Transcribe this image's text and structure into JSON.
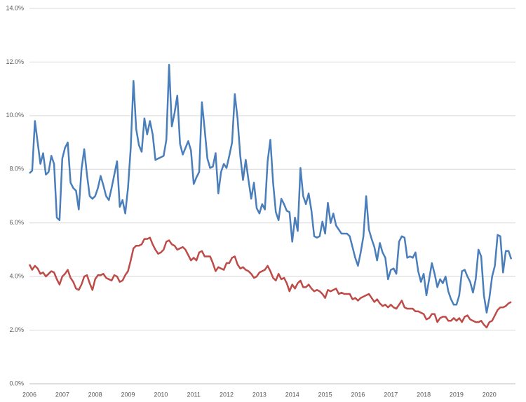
{
  "chart_data": {
    "type": "line",
    "categories": [
      "2006",
      null,
      null,
      null,
      null,
      null,
      null,
      null,
      null,
      null,
      null,
      null,
      "2007",
      null,
      null,
      null,
      null,
      null,
      null,
      null,
      null,
      null,
      null,
      null,
      "2008",
      null,
      null,
      null,
      null,
      null,
      null,
      null,
      null,
      null,
      null,
      null,
      "2009",
      null,
      null,
      null,
      null,
      null,
      null,
      null,
      null,
      null,
      null,
      null,
      "2010",
      null,
      null,
      null,
      null,
      null,
      null,
      null,
      null,
      null,
      null,
      null,
      "2011",
      null,
      null,
      null,
      null,
      null,
      null,
      null,
      null,
      null,
      null,
      null,
      "2012",
      null,
      null,
      null,
      null,
      null,
      null,
      null,
      null,
      null,
      null,
      null,
      "2013",
      null,
      null,
      null,
      null,
      null,
      null,
      null,
      null,
      null,
      null,
      null,
      "2014",
      null,
      null,
      null,
      null,
      null,
      null,
      null,
      null,
      null,
      null,
      null,
      "2015",
      null,
      null,
      null,
      null,
      null,
      null,
      null,
      null,
      null,
      null,
      null,
      "2016",
      null,
      null,
      null,
      null,
      null,
      null,
      null,
      null,
      null,
      null,
      null,
      "2017",
      null,
      null,
      null,
      null,
      null,
      null,
      null,
      null,
      null,
      null,
      null,
      "2018",
      null,
      null,
      null,
      null,
      null,
      null,
      null,
      null,
      null,
      null,
      null,
      "2019",
      null,
      null,
      null,
      null,
      null,
      null,
      null,
      null,
      null,
      null,
      null,
      "2020",
      null,
      null,
      null,
      null,
      null,
      null,
      null,
      null
    ],
    "series": [
      {
        "color": "#4a7ebb",
        "values": [
          7.85,
          7.95,
          9.8,
          9.0,
          8.2,
          8.6,
          7.8,
          7.9,
          8.5,
          8.2,
          6.2,
          6.1,
          8.4,
          8.8,
          9.0,
          7.5,
          7.3,
          7.2,
          6.5,
          8.0,
          8.75,
          7.8,
          7.0,
          6.9,
          7.0,
          7.3,
          7.75,
          7.4,
          7.0,
          6.85,
          7.3,
          7.8,
          8.3,
          6.6,
          6.85,
          6.35,
          7.3,
          8.8,
          11.3,
          9.5,
          8.9,
          8.65,
          9.9,
          9.3,
          9.8,
          9.3,
          8.35,
          8.4,
          8.45,
          8.5,
          9.1,
          11.9,
          9.6,
          10.1,
          10.75,
          8.95,
          8.55,
          8.8,
          9.05,
          8.7,
          7.45,
          7.7,
          7.9,
          10.5,
          9.5,
          8.4,
          8.05,
          8.1,
          8.6,
          7.1,
          7.9,
          8.2,
          8.05,
          8.5,
          9.0,
          10.8,
          9.9,
          8.5,
          7.6,
          8.35,
          7.6,
          6.9,
          7.5,
          6.55,
          6.35,
          6.7,
          6.5,
          8.3,
          9.1,
          7.5,
          6.4,
          6.1,
          6.9,
          6.7,
          6.45,
          6.4,
          5.3,
          6.2,
          5.7,
          8.05,
          7.0,
          6.7,
          7.1,
          6.45,
          5.5,
          5.45,
          5.5,
          6.05,
          5.6,
          6.75,
          6.0,
          6.35,
          5.9,
          5.75,
          5.6,
          5.6,
          5.6,
          5.5,
          5.1,
          4.7,
          4.4,
          4.9,
          5.5,
          7.0,
          5.75,
          5.4,
          5.1,
          4.6,
          5.25,
          4.9,
          4.7,
          3.9,
          4.25,
          4.3,
          4.1,
          5.3,
          5.5,
          5.45,
          4.7,
          4.75,
          4.7,
          4.9,
          4.2,
          3.8,
          4.1,
          3.3,
          3.9,
          4.5,
          4.1,
          3.6,
          3.9,
          3.75,
          4.0,
          3.45,
          3.15,
          2.95,
          2.95,
          3.3,
          4.2,
          4.25,
          4.0,
          3.8,
          3.4,
          3.9,
          5.0,
          4.75,
          3.3,
          2.65,
          3.2,
          4.0,
          4.4,
          5.55,
          5.5,
          4.15,
          4.95,
          4.95,
          4.65
        ]
      },
      {
        "color": "#be4b48",
        "values": [
          4.45,
          4.25,
          4.4,
          4.3,
          4.1,
          4.15,
          4.0,
          4.1,
          4.2,
          4.15,
          3.9,
          3.7,
          4.0,
          4.1,
          4.25,
          3.95,
          3.8,
          3.55,
          3.5,
          3.7,
          4.0,
          4.05,
          3.75,
          3.5,
          3.9,
          4.05,
          4.05,
          4.1,
          3.95,
          3.9,
          3.85,
          4.05,
          4.0,
          3.8,
          3.85,
          4.05,
          4.2,
          4.6,
          5.05,
          5.15,
          5.15,
          5.2,
          5.4,
          5.4,
          5.45,
          5.2,
          5.0,
          4.85,
          4.9,
          5.0,
          5.3,
          5.35,
          5.2,
          5.15,
          5.0,
          5.05,
          5.1,
          5.0,
          4.8,
          4.6,
          4.7,
          4.6,
          4.9,
          4.95,
          4.75,
          4.75,
          4.75,
          4.5,
          4.2,
          4.35,
          4.3,
          4.25,
          4.5,
          4.5,
          4.7,
          4.75,
          4.45,
          4.3,
          4.35,
          4.25,
          4.2,
          4.1,
          3.95,
          4.0,
          4.15,
          4.2,
          4.25,
          4.4,
          4.2,
          3.95,
          3.85,
          4.1,
          3.9,
          3.95,
          3.75,
          3.45,
          3.7,
          3.55,
          3.75,
          3.85,
          3.6,
          3.6,
          3.7,
          3.55,
          3.45,
          3.5,
          3.45,
          3.35,
          3.2,
          3.5,
          3.45,
          3.5,
          3.55,
          3.35,
          3.4,
          3.35,
          3.35,
          3.35,
          3.15,
          3.2,
          3.1,
          3.2,
          3.25,
          3.3,
          3.35,
          3.2,
          3.05,
          3.15,
          3.0,
          2.9,
          2.95,
          2.85,
          2.95,
          2.85,
          2.8,
          2.95,
          3.1,
          2.85,
          2.8,
          2.8,
          2.8,
          2.7,
          2.7,
          2.65,
          2.6,
          2.4,
          2.45,
          2.6,
          2.6,
          2.3,
          2.45,
          2.5,
          2.5,
          2.35,
          2.35,
          2.45,
          2.35,
          2.45,
          2.3,
          2.5,
          2.55,
          2.4,
          2.35,
          2.3,
          2.3,
          2.35,
          2.2,
          2.1,
          2.3,
          2.35,
          2.55,
          2.75,
          2.85,
          2.85,
          2.9,
          3.0,
          3.05
        ]
      }
    ],
    "ylim": [
      0,
      14
    ],
    "yticks": [
      {
        "value": 0,
        "label": "0.0%"
      },
      {
        "value": 2,
        "label": "2.0%"
      },
      {
        "value": 4,
        "label": "4.0%"
      },
      {
        "value": 6,
        "label": "6.0%"
      },
      {
        "value": 8,
        "label": "8.0%"
      },
      {
        "value": 10,
        "label": "10.0%"
      },
      {
        "value": 12,
        "label": "12.0%"
      },
      {
        "value": 14,
        "label": "14.0%"
      }
    ],
    "grid": true
  }
}
